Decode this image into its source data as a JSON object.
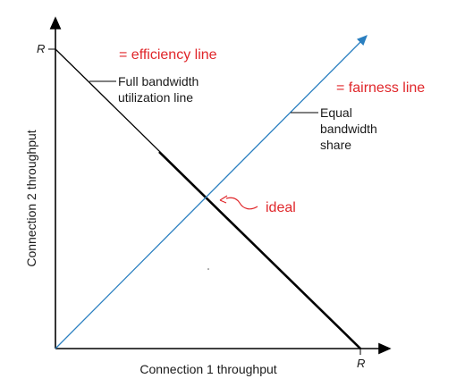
{
  "axes": {
    "x_label": "Connection 1 throughput",
    "y_label": "Connection 2 throughput",
    "x_max_label": "R",
    "y_max_label": "R"
  },
  "lines": {
    "full_bandwidth_label_line1": "Full bandwidth",
    "full_bandwidth_label_line2": "utilization line",
    "equal_share_label_line1": "Equal",
    "equal_share_label_line2": "bandwidth",
    "equal_share_label_line3": "share"
  },
  "annotations": {
    "efficiency": "= efficiency line",
    "fairness": "= fairness line",
    "ideal": "ideal"
  },
  "colors": {
    "axis": "#000000",
    "efficiency_line": "#000000",
    "fairness_line": "#2a7fc0",
    "annotation": "#e0262a"
  }
}
